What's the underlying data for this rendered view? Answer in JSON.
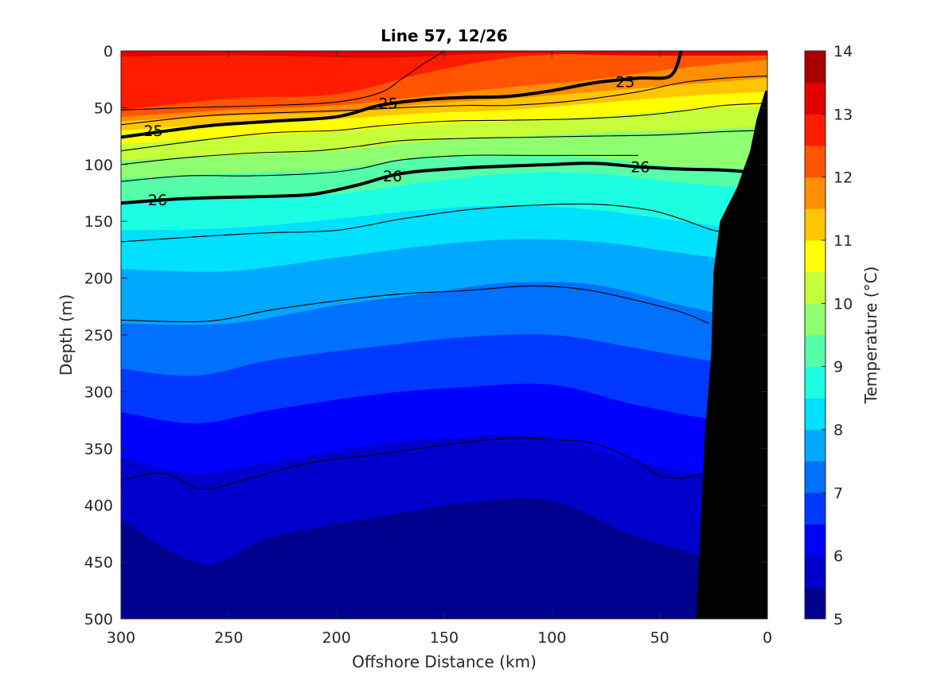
{
  "chart_data": {
    "type": "heatmap",
    "title": "Line 57, 12/26",
    "xlabel": "Offshore Distance (km)",
    "ylabel": "Depth (m)",
    "x_reversed": true,
    "y_reversed": true,
    "xlim": [
      0,
      300
    ],
    "ylim": [
      0,
      500
    ],
    "x_ticks": [
      300,
      250,
      200,
      150,
      100,
      50,
      0
    ],
    "y_ticks": [
      0,
      50,
      100,
      150,
      200,
      250,
      300,
      350,
      400,
      450,
      500
    ],
    "colorbar": {
      "label": "Temperature (°C)",
      "min": 5,
      "max": 14,
      "step": 0.5,
      "ticks": [
        5,
        6,
        7,
        8,
        9,
        10,
        11,
        12,
        13,
        14
      ],
      "colors": [
        "#00008f",
        "#0000cc",
        "#0000ff",
        "#0038ff",
        "#0070ff",
        "#00a8ff",
        "#00e0ff",
        "#1cffe3",
        "#55ffaa",
        "#8eff71",
        "#c6ff39",
        "#ffff00",
        "#ffc600",
        "#ff8e00",
        "#ff5500",
        "#ff1c00",
        "#e30000",
        "#aa0000"
      ]
    },
    "grid": false,
    "temperature_isotherms": [
      {
        "temp": 13.0,
        "points": [
          [
            300,
            5
          ],
          [
            240,
            4
          ],
          [
            180,
            6
          ],
          [
            120,
            2
          ],
          [
            60,
            4
          ],
          [
            0,
            4
          ]
        ]
      },
      {
        "temp": 12.5,
        "points": [
          [
            300,
            52
          ],
          [
            250,
            42
          ],
          [
            200,
            38
          ],
          [
            160,
            20
          ],
          [
            120,
            6
          ],
          [
            80,
            2
          ],
          [
            40,
            0
          ]
        ]
      },
      {
        "temp": 12.0,
        "points": [
          [
            300,
            58
          ],
          [
            250,
            52
          ],
          [
            200,
            48
          ],
          [
            160,
            40
          ],
          [
            120,
            32
          ],
          [
            80,
            25
          ],
          [
            40,
            15
          ],
          [
            0,
            8
          ]
        ]
      },
      {
        "temp": 11.5,
        "points": [
          [
            300,
            62
          ],
          [
            250,
            57
          ],
          [
            200,
            54
          ],
          [
            160,
            47
          ],
          [
            120,
            42
          ],
          [
            80,
            36
          ],
          [
            40,
            30
          ],
          [
            0,
            24
          ]
        ]
      },
      {
        "temp": 11.0,
        "points": [
          [
            300,
            70
          ],
          [
            250,
            64
          ],
          [
            200,
            60
          ],
          [
            160,
            55
          ],
          [
            120,
            52
          ],
          [
            80,
            46
          ],
          [
            40,
            40
          ],
          [
            0,
            36
          ]
        ]
      },
      {
        "temp": 10.5,
        "points": [
          [
            300,
            82
          ],
          [
            250,
            76
          ],
          [
            200,
            71
          ],
          [
            160,
            65
          ],
          [
            120,
            62
          ],
          [
            80,
            58
          ],
          [
            40,
            52
          ],
          [
            0,
            48
          ]
        ]
      },
      {
        "temp": 10.0,
        "points": [
          [
            300,
            96
          ],
          [
            250,
            92
          ],
          [
            200,
            88
          ],
          [
            160,
            80
          ],
          [
            120,
            76
          ],
          [
            80,
            72
          ],
          [
            40,
            70
          ],
          [
            0,
            66
          ]
        ]
      },
      {
        "temp": 9.5,
        "points": [
          [
            300,
            112
          ],
          [
            250,
            108
          ],
          [
            200,
            104
          ],
          [
            160,
            94
          ],
          [
            120,
            92
          ],
          [
            80,
            94
          ],
          [
            40,
            102
          ],
          [
            0,
            104
          ]
        ]
      },
      {
        "temp": 9.0,
        "points": [
          [
            300,
            132
          ],
          [
            250,
            130
          ],
          [
            200,
            126
          ],
          [
            160,
            116
          ],
          [
            120,
            108
          ],
          [
            80,
            108
          ],
          [
            40,
            116
          ],
          [
            0,
            122
          ]
        ]
      },
      {
        "temp": 8.5,
        "points": [
          [
            300,
            158
          ],
          [
            250,
            156
          ],
          [
            200,
            148
          ],
          [
            160,
            140
          ],
          [
            120,
            136
          ],
          [
            80,
            140
          ],
          [
            40,
            150
          ],
          [
            0,
            160
          ]
        ]
      },
      {
        "temp": 8.0,
        "points": [
          [
            300,
            192
          ],
          [
            250,
            194
          ],
          [
            200,
            182
          ],
          [
            160,
            172
          ],
          [
            120,
            166
          ],
          [
            80,
            168
          ],
          [
            40,
            178
          ],
          [
            0,
            188
          ]
        ]
      },
      {
        "temp": 7.5,
        "points": [
          [
            300,
            240
          ],
          [
            250,
            240
          ],
          [
            200,
            224
          ],
          [
            160,
            214
          ],
          [
            120,
            204
          ],
          [
            80,
            206
          ],
          [
            40,
            224
          ],
          [
            0,
            240
          ]
        ]
      },
      {
        "temp": 7.0,
        "points": [
          [
            300,
            280
          ],
          [
            265,
            286
          ],
          [
            230,
            272
          ],
          [
            180,
            260
          ],
          [
            140,
            252
          ],
          [
            100,
            250
          ],
          [
            60,
            262
          ],
          [
            0,
            282
          ]
        ]
      },
      {
        "temp": 6.5,
        "points": [
          [
            300,
            318
          ],
          [
            265,
            328
          ],
          [
            230,
            316
          ],
          [
            180,
            302
          ],
          [
            140,
            296
          ],
          [
            100,
            294
          ],
          [
            60,
            312
          ],
          [
            0,
            334
          ]
        ]
      },
      {
        "temp": 6.0,
        "points": [
          [
            300,
            358
          ],
          [
            265,
            372
          ],
          [
            230,
            362
          ],
          [
            180,
            346
          ],
          [
            140,
            340
          ],
          [
            100,
            340
          ],
          [
            60,
            362
          ],
          [
            0,
            384
          ]
        ]
      },
      {
        "temp": 5.5,
        "points": [
          [
            300,
            412
          ],
          [
            262,
            452
          ],
          [
            230,
            428
          ],
          [
            180,
            410
          ],
          [
            140,
            398
          ],
          [
            100,
            396
          ],
          [
            60,
            428
          ],
          [
            0,
            460
          ]
        ]
      }
    ],
    "deep_patches": [
      {
        "temp": 5.0,
        "points": [
          [
            160,
            490
          ],
          [
            145,
            482
          ],
          [
            120,
            478
          ],
          [
            100,
            482
          ],
          [
            85,
            495
          ],
          [
            90,
            500
          ],
          [
            160,
            500
          ]
        ]
      }
    ],
    "density_contours": [
      {
        "sigma": 25.0,
        "bold": true,
        "points": [
          [
            300,
            76
          ],
          [
            260,
            66
          ],
          [
            230,
            62
          ],
          [
            200,
            58
          ],
          [
            180,
            48
          ],
          [
            160,
            43
          ],
          [
            140,
            41
          ],
          [
            120,
            40
          ],
          [
            100,
            35
          ],
          [
            80,
            28
          ],
          [
            60,
            24
          ],
          [
            45,
            22
          ],
          [
            40,
            0
          ]
        ]
      },
      {
        "sigma": 26.0,
        "bold": true,
        "points": [
          [
            300,
            134
          ],
          [
            270,
            130
          ],
          [
            230,
            128
          ],
          [
            210,
            126
          ],
          [
            190,
            118
          ],
          [
            170,
            108
          ],
          [
            140,
            103
          ],
          [
            100,
            100
          ],
          [
            80,
            99
          ],
          [
            60,
            102
          ],
          [
            40,
            104
          ],
          [
            20,
            105
          ],
          [
            0,
            108
          ]
        ]
      },
      {
        "sigma": null,
        "bold": false,
        "points": [
          [
            300,
            52
          ],
          [
            270,
            50
          ],
          [
            230,
            48
          ],
          [
            200,
            45
          ],
          [
            180,
            37
          ],
          [
            170,
            25
          ],
          [
            160,
            12
          ],
          [
            150,
            0
          ]
        ]
      },
      {
        "sigma": null,
        "bold": false,
        "points": [
          [
            300,
            65
          ],
          [
            260,
            57
          ],
          [
            220,
            54
          ],
          [
            190,
            52
          ],
          [
            170,
            50
          ],
          [
            140,
            48
          ],
          [
            120,
            48
          ],
          [
            90,
            44
          ],
          [
            60,
            36
          ],
          [
            40,
            28
          ],
          [
            20,
            24
          ],
          [
            0,
            22
          ]
        ]
      },
      {
        "sigma": null,
        "bold": false,
        "points": [
          [
            300,
            88
          ],
          [
            260,
            78
          ],
          [
            230,
            72
          ],
          [
            200,
            70
          ],
          [
            180,
            66
          ],
          [
            150,
            62
          ],
          [
            120,
            61
          ],
          [
            90,
            60
          ],
          [
            60,
            57
          ],
          [
            40,
            53
          ],
          [
            20,
            48
          ],
          [
            0,
            46
          ]
        ]
      },
      {
        "sigma": null,
        "bold": false,
        "points": [
          [
            300,
            100
          ],
          [
            270,
            94
          ],
          [
            240,
            90
          ],
          [
            210,
            88
          ],
          [
            190,
            84
          ],
          [
            170,
            79
          ],
          [
            140,
            77
          ],
          [
            110,
            76
          ],
          [
            80,
            75
          ],
          [
            50,
            74
          ],
          [
            20,
            71
          ],
          [
            0,
            70
          ]
        ]
      },
      {
        "sigma": null,
        "bold": false,
        "points": [
          [
            300,
            115
          ],
          [
            270,
            110
          ],
          [
            240,
            110
          ],
          [
            210,
            108
          ],
          [
            190,
            104
          ],
          [
            170,
            96
          ],
          [
            140,
            92
          ],
          [
            110,
            92
          ],
          [
            80,
            92
          ],
          [
            60,
            92
          ]
        ]
      },
      {
        "sigma": null,
        "bold": false,
        "points": [
          [
            300,
            168
          ],
          [
            260,
            163
          ],
          [
            230,
            160
          ],
          [
            200,
            158
          ],
          [
            170,
            148
          ],
          [
            140,
            140
          ],
          [
            110,
            136
          ],
          [
            80,
            135
          ],
          [
            55,
            140
          ],
          [
            40,
            148
          ],
          [
            25,
            158
          ],
          [
            15,
            160
          ]
        ]
      },
      {
        "sigma": null,
        "bold": false,
        "points": [
          [
            300,
            237
          ],
          [
            260,
            238
          ],
          [
            230,
            228
          ],
          [
            200,
            220
          ],
          [
            170,
            214
          ],
          [
            140,
            211
          ],
          [
            110,
            207
          ],
          [
            85,
            210
          ],
          [
            60,
            220
          ],
          [
            40,
            230
          ],
          [
            27,
            240
          ]
        ]
      },
      {
        "sigma": null,
        "bold": false,
        "points": [
          [
            300,
            378
          ],
          [
            280,
            372
          ],
          [
            262,
            386
          ],
          [
            240,
            376
          ],
          [
            210,
            362
          ],
          [
            180,
            355
          ],
          [
            150,
            347
          ],
          [
            120,
            341
          ],
          [
            100,
            342
          ],
          [
            80,
            346
          ],
          [
            60,
            362
          ],
          [
            50,
            374
          ],
          [
            40,
            376
          ],
          [
            30,
            372
          ]
        ]
      }
    ],
    "contour_labels": [
      {
        "text": "25",
        "x": 285,
        "y": 70
      },
      {
        "text": "25",
        "x": 176,
        "y": 46
      },
      {
        "text": "25",
        "x": 66,
        "y": 27
      },
      {
        "text": "26",
        "x": 283,
        "y": 131
      },
      {
        "text": "26",
        "x": 174,
        "y": 110
      },
      {
        "text": "26",
        "x": 59,
        "y": 102
      }
    ],
    "bathymetry": [
      [
        33,
        500
      ],
      [
        31,
        420
      ],
      [
        29,
        340
      ],
      [
        26,
        265
      ],
      [
        25,
        195
      ],
      [
        22,
        150
      ],
      [
        14,
        120
      ],
      [
        8,
        88
      ],
      [
        5,
        60
      ],
      [
        1,
        35
      ],
      [
        0,
        35
      ],
      [
        0,
        500
      ]
    ]
  }
}
